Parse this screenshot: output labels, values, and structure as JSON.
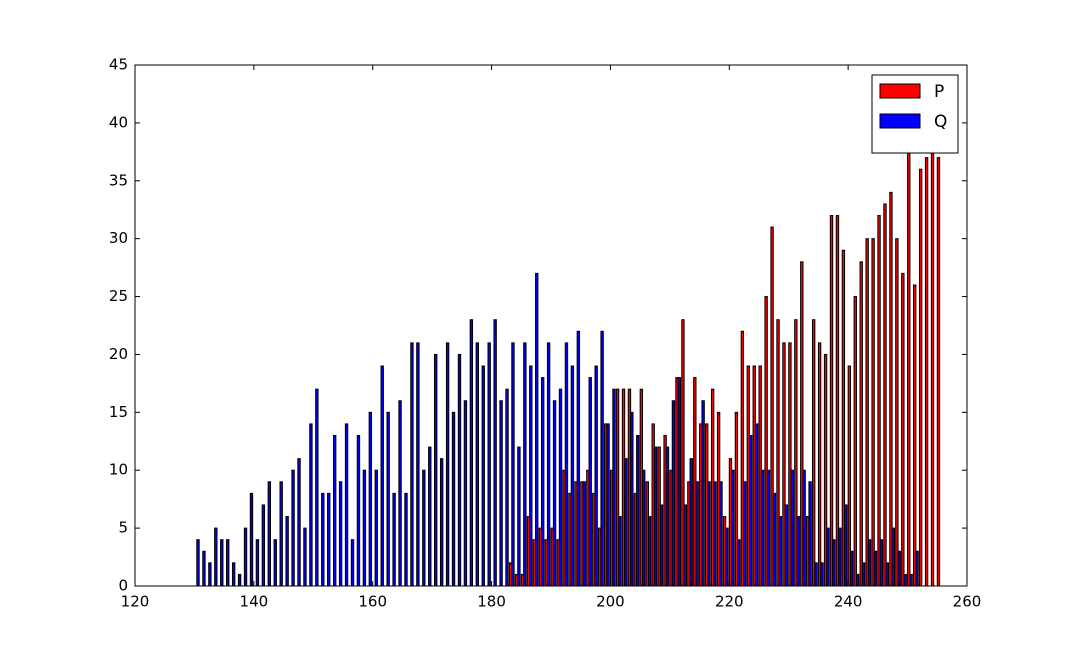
{
  "chart_data": {
    "type": "bar",
    "x": [
      130,
      131,
      132,
      133,
      134,
      135,
      136,
      137,
      138,
      139,
      140,
      141,
      142,
      143,
      144,
      145,
      146,
      147,
      148,
      149,
      150,
      151,
      152,
      153,
      154,
      155,
      156,
      157,
      158,
      159,
      160,
      161,
      162,
      163,
      164,
      165,
      166,
      167,
      168,
      169,
      170,
      171,
      172,
      173,
      174,
      175,
      176,
      177,
      178,
      179,
      180,
      181,
      182,
      183,
      184,
      185,
      186,
      187,
      188,
      189,
      190,
      191,
      192,
      193,
      194,
      195,
      196,
      197,
      198,
      199,
      200,
      201,
      202,
      203,
      204,
      205,
      206,
      207,
      208,
      209,
      210,
      211,
      212,
      213,
      214,
      215,
      216,
      217,
      218,
      219,
      220,
      221,
      222,
      223,
      224,
      225,
      226,
      227,
      228,
      229,
      230,
      231,
      232,
      233,
      234,
      235,
      236,
      237,
      238,
      239,
      240,
      241,
      242,
      243,
      244,
      245,
      246,
      247,
      248,
      249,
      250,
      251,
      252,
      253,
      254,
      255
    ],
    "series": [
      {
        "name": "P",
        "color": "#ff0000",
        "values": [
          0,
          0,
          0,
          0,
          0,
          0,
          0,
          0,
          0,
          0,
          0,
          0,
          0,
          0,
          0,
          0,
          0,
          0,
          0,
          0,
          0,
          0,
          0,
          0,
          0,
          0,
          0,
          0,
          0,
          0,
          0,
          0,
          0,
          0,
          0,
          0,
          0,
          0,
          0,
          0,
          0,
          0,
          0,
          0,
          0,
          0,
          0,
          0,
          0,
          0,
          0,
          0,
          0,
          2,
          1,
          1,
          6,
          4,
          5,
          4,
          5,
          4,
          10,
          8,
          9,
          9,
          10,
          8,
          5,
          14,
          10,
          17,
          17,
          17,
          8,
          17,
          9,
          14,
          12,
          13,
          10,
          18,
          23,
          9,
          18,
          14,
          14,
          17,
          15,
          6,
          11,
          15,
          22,
          19,
          19,
          19,
          25,
          31,
          23,
          21,
          21,
          23,
          28,
          6,
          23,
          21,
          20,
          32,
          32,
          29,
          19,
          25,
          28,
          30,
          30,
          32,
          33,
          34,
          30,
          27,
          38,
          26,
          36,
          37,
          39,
          37
        ]
      },
      {
        "name": "Q",
        "color": "#0000ff",
        "values": [
          4,
          3,
          2,
          5,
          4,
          4,
          2,
          1,
          5,
          8,
          4,
          7,
          9,
          4,
          9,
          6,
          10,
          11,
          5,
          14,
          17,
          8,
          8,
          13,
          9,
          14,
          4,
          13,
          10,
          15,
          10,
          19,
          15,
          8,
          16,
          8,
          21,
          21,
          10,
          12,
          20,
          11,
          21,
          15,
          20,
          16,
          23,
          21,
          19,
          21,
          23,
          16,
          17,
          21,
          12,
          21,
          19,
          27,
          18,
          21,
          16,
          17,
          21,
          19,
          22,
          9,
          18,
          19,
          22,
          14,
          17,
          6,
          11,
          15,
          13,
          10,
          6,
          12,
          7,
          12,
          16,
          18,
          7,
          11,
          9,
          16,
          9,
          9,
          9,
          5,
          10,
          4,
          9,
          13,
          14,
          10,
          10,
          8,
          6,
          7,
          10,
          6,
          10,
          9,
          2,
          2,
          5,
          4,
          5,
          7,
          3,
          1,
          2,
          4,
          3,
          4,
          2,
          5,
          3,
          1,
          1,
          3,
          0,
          0,
          0,
          0
        ]
      }
    ],
    "xlim": [
      120,
      260
    ],
    "xticks": [
      120,
      140,
      160,
      180,
      200,
      220,
      240,
      260
    ],
    "ylim": [
      0,
      45
    ],
    "yticks": [
      0,
      5,
      10,
      15,
      20,
      25,
      30,
      35,
      40,
      45
    ],
    "legend": "upper right"
  }
}
